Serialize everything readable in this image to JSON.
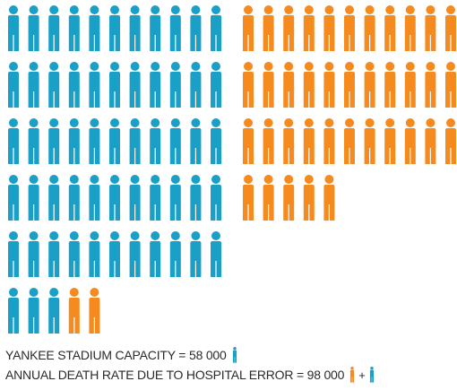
{
  "colors": {
    "blue": "#1a9fc6",
    "orange": "#f58a1f"
  },
  "icon": "person-icon",
  "chart_data": {
    "type": "pictogram",
    "series": [
      {
        "name": "YANKEE STADIUM CAPACITY",
        "value": 58000,
        "icons": 58,
        "color": "#1a9fc6"
      },
      {
        "name": "ANNUAL DEATH RATE DUE TO HOSPITAL ERROR",
        "value": 98000,
        "icons": 98,
        "color_extra": "#f58a1f"
      }
    ],
    "unit_per_icon": 1000
  },
  "legend": {
    "line1": "YANKEE STADIUM CAPACITY = 58 000",
    "line2": "ANNUAL DEATH RATE DUE TO HOSPITAL ERROR = 98 000",
    "plus": "+"
  }
}
